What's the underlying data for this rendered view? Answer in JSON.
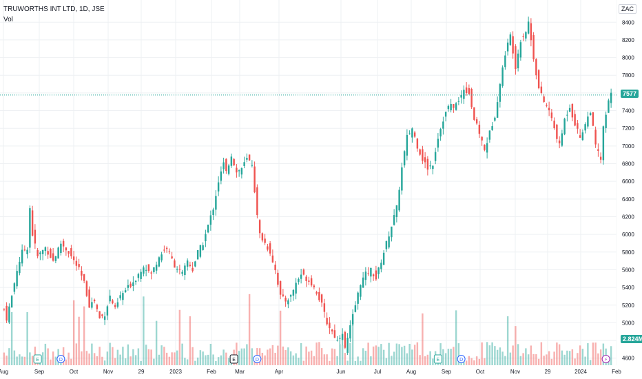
{
  "header": {
    "symbol": "TRUWORTHS INT LTD, 1D, JSE",
    "vol_label": "Vol"
  },
  "currency": "ZAC",
  "last_price_tag": "7577",
  "volume_tag": "2.824M",
  "colors": {
    "up": "#26a69a",
    "down": "#ef5350",
    "grid": "#eef0f3",
    "text": "#131722"
  },
  "chart_data": {
    "type": "candlestick",
    "y_axis": {
      "ticks": [
        4600,
        4800,
        5000,
        5200,
        5400,
        5600,
        5800,
        6000,
        6200,
        6400,
        6600,
        6800,
        7000,
        7200,
        7400,
        7600,
        7800,
        8000,
        8200,
        8400
      ],
      "ylim": [
        4520,
        8480
      ]
    },
    "x_axis": {
      "labels": [
        "Aug",
        "Sep",
        "Oct",
        "Nov",
        "29",
        "2023",
        "Feb",
        "Mar",
        "Apr",
        "Jun",
        "Jul",
        "Aug",
        "Sep",
        "Oct",
        "Nov",
        "29",
        "2024",
        "Feb"
      ]
    },
    "close_path": [
      [
        0,
        5150
      ],
      [
        1,
        5050
      ],
      [
        3,
        5300
      ],
      [
        5,
        5600
      ],
      [
        7,
        5800
      ],
      [
        9,
        5850
      ],
      [
        10,
        6300
      ],
      [
        11,
        6000
      ],
      [
        13,
        5750
      ],
      [
        16,
        5850
      ],
      [
        19,
        5700
      ],
      [
        22,
        5900
      ],
      [
        25,
        5800
      ],
      [
        27,
        5700
      ],
      [
        29,
        5600
      ],
      [
        31,
        5450
      ],
      [
        33,
        5200
      ],
      [
        35,
        5250
      ],
      [
        37,
        5050
      ],
      [
        39,
        5100
      ],
      [
        41,
        5300
      ],
      [
        43,
        5150
      ],
      [
        45,
        5300
      ],
      [
        48,
        5400
      ],
      [
        51,
        5500
      ],
      [
        54,
        5650
      ],
      [
        57,
        5550
      ],
      [
        60,
        5750
      ],
      [
        63,
        5850
      ],
      [
        66,
        5650
      ],
      [
        69,
        5550
      ],
      [
        71,
        5700
      ],
      [
        73,
        5600
      ],
      [
        75,
        5800
      ],
      [
        77,
        5900
      ],
      [
        79,
        6100
      ],
      [
        81,
        6300
      ],
      [
        83,
        6600
      ],
      [
        85,
        6800
      ],
      [
        86,
        6700
      ],
      [
        88,
        6900
      ],
      [
        90,
        6700
      ],
      [
        92,
        6750
      ],
      [
        94,
        6850
      ],
      [
        96,
        6800
      ],
      [
        97,
        6500
      ],
      [
        98,
        6200
      ],
      [
        99,
        6000
      ],
      [
        101,
        5900
      ],
      [
        103,
        5800
      ],
      [
        105,
        5600
      ],
      [
        107,
        5300
      ],
      [
        109,
        5250
      ],
      [
        111,
        5300
      ],
      [
        113,
        5450
      ],
      [
        115,
        5550
      ],
      [
        117,
        5500
      ],
      [
        119,
        5450
      ],
      [
        121,
        5350
      ],
      [
        123,
        5200
      ],
      [
        125,
        5000
      ],
      [
        127,
        4900
      ],
      [
        129,
        4800
      ],
      [
        131,
        4900
      ],
      [
        132,
        4700
      ],
      [
        134,
        4950
      ],
      [
        136,
        5200
      ],
      [
        138,
        5450
      ],
      [
        140,
        5550
      ],
      [
        142,
        5600
      ],
      [
        144,
        5500
      ],
      [
        146,
        5700
      ],
      [
        148,
        5900
      ],
      [
        150,
        6100
      ],
      [
        152,
        6300
      ],
      [
        154,
        6750
      ],
      [
        156,
        7100
      ],
      [
        158,
        7200
      ],
      [
        160,
        7000
      ],
      [
        162,
        6850
      ],
      [
        164,
        6750
      ],
      [
        166,
        6800
      ],
      [
        168,
        7100
      ],
      [
        170,
        7300
      ],
      [
        172,
        7450
      ],
      [
        174,
        7450
      ],
      [
        176,
        7500
      ],
      [
        178,
        7650
      ],
      [
        180,
        7600
      ],
      [
        182,
        7300
      ],
      [
        184,
        7150
      ],
      [
        186,
        6950
      ],
      [
        188,
        7150
      ],
      [
        190,
        7350
      ],
      [
        192,
        7700
      ],
      [
        194,
        8050
      ],
      [
        196,
        8250
      ],
      [
        198,
        7900
      ],
      [
        200,
        8200
      ],
      [
        202,
        8300
      ],
      [
        203,
        8400
      ],
      [
        205,
        8000
      ],
      [
        207,
        7650
      ],
      [
        209,
        7500
      ],
      [
        211,
        7400
      ],
      [
        213,
        7200
      ],
      [
        215,
        7000
      ],
      [
        217,
        7300
      ],
      [
        219,
        7450
      ],
      [
        221,
        7250
      ],
      [
        223,
        7100
      ],
      [
        225,
        7250
      ],
      [
        227,
        7400
      ],
      [
        229,
        7000
      ],
      [
        231,
        6850
      ],
      [
        232,
        7200
      ],
      [
        234,
        7500
      ],
      [
        235,
        7580
      ]
    ],
    "last_close": 7577,
    "last_volume": "2.824M",
    "events": [
      {
        "label": "E",
        "type": "earnings",
        "x_index": 13
      },
      {
        "label": "D",
        "type": "dividend",
        "x_index": 22
      },
      {
        "label": "E",
        "type": "earnings",
        "x_index": 89
      },
      {
        "label": "D",
        "type": "dividend",
        "x_index": 98
      },
      {
        "label": "E",
        "type": "earnings",
        "x_index": 168
      },
      {
        "label": "D",
        "type": "dividend",
        "x_index": 177
      },
      {
        "label": "⚡",
        "type": "split",
        "x_index": 233
      }
    ]
  }
}
